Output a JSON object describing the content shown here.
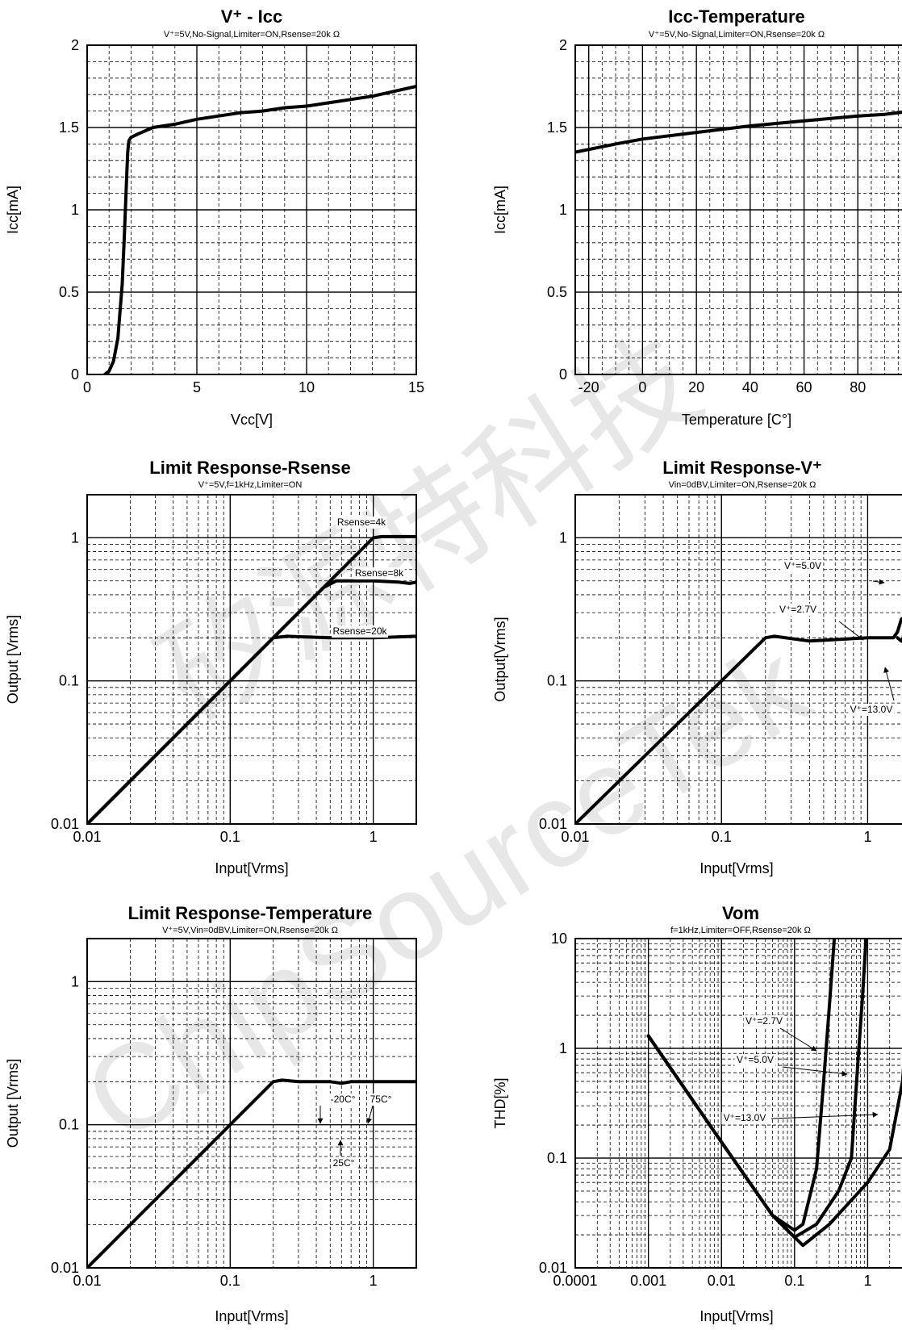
{
  "chart_data": [
    {
      "id": "vcc-icc",
      "type": "line",
      "title": "V⁺ - Icc",
      "subtitle": "V⁺=5V,No-Signal,Limiter=ON,Rsense=20k  Ω",
      "xlabel": "Vcc[V]",
      "ylabel": "Icc[mA]",
      "xscale": "linear",
      "yscale": "linear",
      "xlim": [
        0,
        15
      ],
      "ylim": [
        0,
        2
      ],
      "xticks": [
        0,
        5,
        10,
        15
      ],
      "xtick_labels": [
        "0",
        "5",
        "10",
        "15"
      ],
      "yticks": [
        0,
        0.5,
        1,
        1.5,
        2
      ],
      "ytick_labels": [
        "0",
        "0.5",
        "1",
        "1.5",
        "2"
      ],
      "grid": true,
      "series": [
        {
          "x": [
            0.8,
            1.0,
            1.2,
            1.4,
            1.6,
            1.7,
            1.8,
            1.85,
            1.9,
            2.0,
            2.3,
            3,
            4,
            5,
            6,
            7,
            8,
            9,
            10,
            11,
            12,
            13,
            14,
            15
          ],
          "y": [
            0.0,
            0.02,
            0.08,
            0.22,
            0.55,
            0.85,
            1.2,
            1.35,
            1.42,
            1.44,
            1.46,
            1.5,
            1.52,
            1.55,
            1.57,
            1.59,
            1.6,
            1.62,
            1.63,
            1.65,
            1.67,
            1.69,
            1.72,
            1.75
          ]
        }
      ]
    },
    {
      "id": "icc-temperature",
      "type": "line",
      "title": "Icc-Temperature",
      "subtitle": "V⁺=5V,No-Signal,Limiter=ON,Rsense=20k  Ω",
      "xlabel": "Temperature [C°]",
      "ylabel": "Icc[mA]",
      "xscale": "linear",
      "yscale": "linear",
      "xlim": [
        -25,
        100
      ],
      "ylim": [
        0,
        2
      ],
      "xticks": [
        -20,
        0,
        20,
        40,
        60,
        80
      ],
      "xtick_labels": [
        "-20",
        "0",
        "20",
        "40",
        "60",
        "80"
      ],
      "yticks": [
        0,
        0.5,
        1,
        1.5,
        2
      ],
      "ytick_labels": [
        "0",
        "0.5",
        "1",
        "1.5",
        "2"
      ],
      "grid": true,
      "series": [
        {
          "x": [
            -25,
            -10,
            0,
            20,
            40,
            60,
            80,
            90,
            100
          ],
          "y": [
            1.35,
            1.4,
            1.43,
            1.47,
            1.51,
            1.54,
            1.57,
            1.58,
            1.6
          ]
        }
      ]
    },
    {
      "id": "limit-response-rsense",
      "type": "line",
      "title": "Limit Response-Rsense",
      "subtitle": "V⁺=5V,f=1kHz,Limiter=ON",
      "xlabel": "Input[Vrms]",
      "ylabel": "Output [Vrms]",
      "xscale": "log",
      "yscale": "log",
      "xlim": [
        0.01,
        2
      ],
      "ylim": [
        0.01,
        2
      ],
      "xticks": [
        0.01,
        0.1,
        1
      ],
      "xtick_labels": [
        "0.01",
        "0.1",
        "1"
      ],
      "yticks": [
        0.01,
        0.1,
        1
      ],
      "ytick_labels": [
        "0.01",
        "0.1",
        "1"
      ],
      "grid": true,
      "series": [
        {
          "name": "Rsense=4k",
          "x": [
            0.01,
            0.1,
            1.0,
            1.15,
            1.5,
            2.0
          ],
          "y": [
            0.01,
            0.1,
            1.0,
            1.02,
            1.02,
            1.02
          ]
        },
        {
          "name": "Rsense=8k",
          "x": [
            0.01,
            0.1,
            0.45,
            0.55,
            1.0,
            1.5,
            1.8,
            2.0
          ],
          "y": [
            0.01,
            0.1,
            0.45,
            0.5,
            0.5,
            0.49,
            0.48,
            0.49
          ]
        },
        {
          "name": "Rsense=20k",
          "x": [
            0.01,
            0.1,
            0.2,
            0.25,
            0.5,
            1.0,
            2.0
          ],
          "y": [
            0.01,
            0.1,
            0.2,
            0.205,
            0.2,
            0.2,
            0.205
          ]
        }
      ],
      "annotations": [
        "Rsense=4k",
        "Rsense=8k",
        "Rsense=20k"
      ]
    },
    {
      "id": "limit-response-v",
      "type": "line",
      "title": "Limit Response-V⁺",
      "subtitle": "Vin=0dBV,Limiter=ON,Rsense=20k  Ω",
      "xlabel": "Input[Vrms]",
      "ylabel": "Output[Vrms]",
      "xscale": "log",
      "yscale": "log",
      "xlim": [
        0.01,
        2
      ],
      "ylim": [
        0.01,
        2
      ],
      "xticks": [
        0.01,
        0.1,
        1
      ],
      "xtick_labels": [
        "0.01",
        "0.1",
        "1"
      ],
      "yticks": [
        0.01,
        0.1,
        1
      ],
      "ytick_labels": [
        "0.01",
        "0.1",
        "1"
      ],
      "grid": true,
      "series": [
        {
          "name": "V⁺=2.7V",
          "x": [
            0.01,
            0.1,
            0.2,
            0.23,
            0.4,
            1.0,
            1.5,
            1.6,
            1.7,
            2.0
          ],
          "y": [
            0.01,
            0.1,
            0.2,
            0.205,
            0.19,
            0.2,
            0.2,
            0.22,
            0.27,
            0.3
          ]
        },
        {
          "name": "V⁺=5.0V",
          "x": [
            1.75,
            1.85,
            1.9,
            2.0
          ],
          "y": [
            0.2,
            0.3,
            0.55,
            0.85
          ]
        },
        {
          "name": "V⁺=13.0V",
          "x": [
            1.6,
            1.7,
            1.75,
            2.0
          ],
          "y": [
            0.2,
            0.19,
            0.2,
            0.2
          ]
        }
      ],
      "annotations": [
        "V⁺=5.0V",
        "V⁺=2.7V",
        "V⁺=13.0V"
      ]
    },
    {
      "id": "limit-response-temperature",
      "type": "line",
      "title": "Limit Response-Temperature",
      "subtitle": "V⁺=5V,Vin=0dBV,Limiter=ON,Rsense=20k  Ω",
      "xlabel": "Input[Vrms]",
      "ylabel": "Output [Vrms]",
      "xscale": "log",
      "yscale": "log",
      "xlim": [
        0.01,
        2
      ],
      "ylim": [
        0.01,
        2
      ],
      "xticks": [
        0.01,
        0.1,
        1
      ],
      "xtick_labels": [
        "0.01",
        "0.1",
        "1"
      ],
      "yticks": [
        0.01,
        0.1,
        1
      ],
      "ytick_labels": [
        "0.01",
        "0.1",
        "1"
      ],
      "grid": true,
      "series": [
        {
          "x": [
            0.01,
            0.1,
            0.2,
            0.23,
            0.3,
            0.5,
            0.6,
            0.7,
            1.0,
            2.0
          ],
          "y": [
            0.01,
            0.1,
            0.2,
            0.205,
            0.2,
            0.2,
            0.195,
            0.2,
            0.2,
            0.2
          ]
        }
      ],
      "annotations": [
        "-20C°",
        "75C°",
        "25C°"
      ]
    },
    {
      "id": "vom",
      "type": "line",
      "title": "Vom",
      "subtitle": "f=1kHz,Limiter=OFF,Rsense=20k  Ω",
      "xlabel": "Input[Vrms]",
      "ylabel": "THD[%]",
      "xscale": "log",
      "yscale": "log",
      "xlim": [
        0.0001,
        4
      ],
      "ylim": [
        0.01,
        10
      ],
      "xticks": [
        0.0001,
        0.001,
        0.01,
        0.1,
        1
      ],
      "xtick_labels": [
        "0.0001",
        "0.001",
        "0.01",
        "0.1",
        "1"
      ],
      "yticks": [
        0.01,
        0.1,
        1,
        10
      ],
      "ytick_labels": [
        "0.01",
        "0.1",
        "1",
        "10"
      ],
      "grid": true,
      "series": [
        {
          "name": "V⁺=2.7V",
          "x": [
            0.001,
            0.01,
            0.05,
            0.1,
            0.13,
            0.2,
            0.25,
            0.3,
            0.35
          ],
          "y": [
            1.3,
            0.14,
            0.03,
            0.022,
            0.025,
            0.08,
            0.5,
            2.5,
            10
          ]
        },
        {
          "name": "V⁺=5.0V",
          "x": [
            0.001,
            0.01,
            0.05,
            0.1,
            0.2,
            0.4,
            0.6,
            0.75,
            0.85,
            0.95
          ],
          "y": [
            1.3,
            0.14,
            0.03,
            0.019,
            0.025,
            0.05,
            0.1,
            0.9,
            3.0,
            10
          ]
        },
        {
          "name": "V⁺=13.0V",
          "x": [
            0.001,
            0.01,
            0.05,
            0.13,
            0.3,
            1.0,
            2.0,
            3.0,
            3.5,
            4.0
          ],
          "y": [
            1.3,
            0.14,
            0.03,
            0.016,
            0.025,
            0.06,
            0.12,
            0.5,
            2.0,
            10
          ]
        }
      ],
      "annotations": [
        "V⁺=2.7V",
        "V⁺=5.0V",
        "V⁺=13.0V"
      ]
    }
  ],
  "watermark": [
    "矽源特科技",
    "ChipSourceTek"
  ]
}
